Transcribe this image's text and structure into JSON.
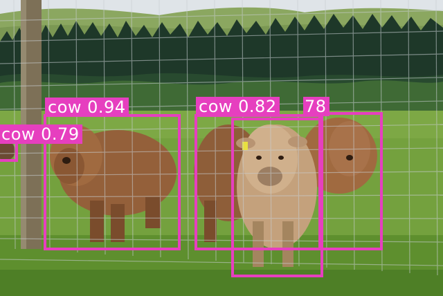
{
  "image": {
    "description_colors": {
      "sky": "#dfe4e8",
      "hills": "#7e9b55",
      "forest": "#1f3a2a",
      "grass": "#6f9a3a",
      "cow_brown": "#9b6a3f",
      "cow_light": "#c9a985",
      "box_color": "#e63fbf"
    }
  },
  "detections": [
    {
      "label": "cow",
      "score": "0.94"
    },
    {
      "label": "cow",
      "score": "0.79"
    },
    {
      "label": "cow",
      "score": "0.82"
    },
    {
      "label": "",
      "score": "78"
    }
  ]
}
